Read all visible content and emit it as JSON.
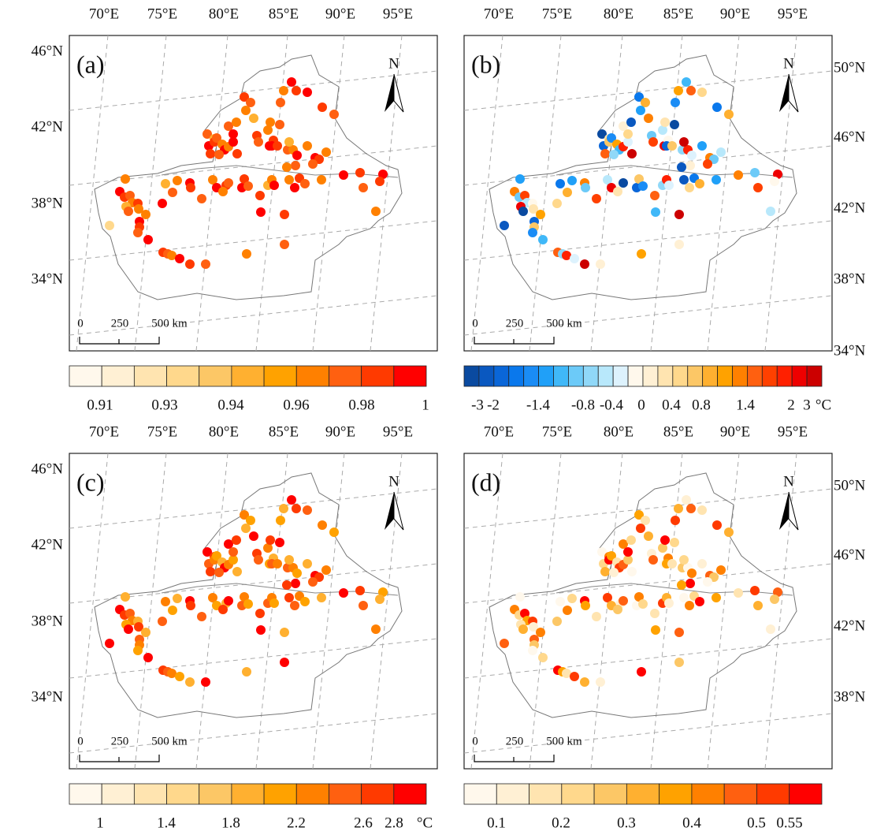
{
  "panels": [
    {
      "label": "(a)",
      "lon_labels": [
        "70°E",
        "75°E",
        "80°E",
        "85°E",
        "90°E",
        "95°E"
      ],
      "lat_labels": [
        "46°N",
        "42°N",
        "38°N",
        "34°N"
      ],
      "lat_side": "left",
      "north": "N",
      "scale": [
        "0",
        "250",
        "500 km"
      ]
    },
    {
      "label": "(b)",
      "lon_labels": [
        "70°E",
        "75°E",
        "80°E",
        "85°E",
        "90°E",
        "95°E"
      ],
      "lat_labels": [
        "50°N",
        "46°N",
        "42°N",
        "38°N",
        "34°N"
      ],
      "lat_side": "right",
      "north": "N",
      "scale": [
        "0",
        "250",
        "500 km"
      ]
    },
    {
      "label": "(c)",
      "lon_labels": [
        "70°E",
        "75°E",
        "80°E",
        "85°E",
        "90°E",
        "95°E"
      ],
      "lat_labels": [
        "46°N",
        "42°N",
        "38°N",
        "34°N"
      ],
      "lat_side": "left",
      "north": "N",
      "scale": [
        "0",
        "250",
        "500 km"
      ]
    },
    {
      "label": "(d)",
      "lon_labels": [
        "70°E",
        "75°E",
        "80°E",
        "85°E",
        "90°E",
        "95°E"
      ],
      "lat_labels": [
        "50°N",
        "46°N",
        "42°N",
        "38°N"
      ],
      "lat_side": "right",
      "north": "N",
      "scale": [
        "0",
        "250",
        "500 km"
      ]
    }
  ],
  "colorbars": [
    {
      "colors": [
        "#fff8ec",
        "#fff0d4",
        "#ffe4b0",
        "#ffd88c",
        "#fcc766",
        "#ffb030",
        "#ffa200",
        "#ff8000",
        "#ff6010",
        "#ff3a00",
        "#ff0000"
      ],
      "labels": [
        "0.91",
        "0.93",
        "0.94",
        "0.96",
        "0.98",
        "1"
      ]
    },
    {
      "colors": [
        "#0a4aa0",
        "#0a58c0",
        "#0a66d8",
        "#0a78ec",
        "#1a8cf5",
        "#20a0f8",
        "#40b8f8",
        "#6ccaf8",
        "#90d8f8",
        "#b8e8fb",
        "#ddf2fd",
        "#fff8ec",
        "#fff0d4",
        "#ffe4b0",
        "#ffd88c",
        "#fcc766",
        "#ffb030",
        "#ffa200",
        "#ff8000",
        "#ff6010",
        "#ff4000",
        "#ff2000",
        "#ee0000",
        "#cc0000"
      ],
      "labels": [
        "-3",
        "-2",
        "-1.4",
        "-0.8",
        "-0.4",
        "0",
        "0.4",
        "0.8",
        "1.4",
        "2",
        "3",
        "°C"
      ]
    },
    {
      "colors": [
        "#fff8ec",
        "#fff0d4",
        "#ffe4b0",
        "#ffd88c",
        "#fcc766",
        "#ffb030",
        "#ffa200",
        "#ff8000",
        "#ff6010",
        "#ff3a00",
        "#ff0000"
      ],
      "labels": [
        "1",
        "1.4",
        "1.8",
        "2.2",
        "2.6",
        "2.8",
        "°C"
      ]
    },
    {
      "colors": [
        "#fff8ec",
        "#fff0d4",
        "#ffe4b0",
        "#ffd88c",
        "#fcc766",
        "#ffb030",
        "#ffa200",
        "#ff8000",
        "#ff6010",
        "#ff3a00",
        "#ff0000"
      ],
      "labels": [
        "0.1",
        "0.2",
        "0.3",
        "0.4",
        "0.5",
        "0.55"
      ]
    }
  ]
}
